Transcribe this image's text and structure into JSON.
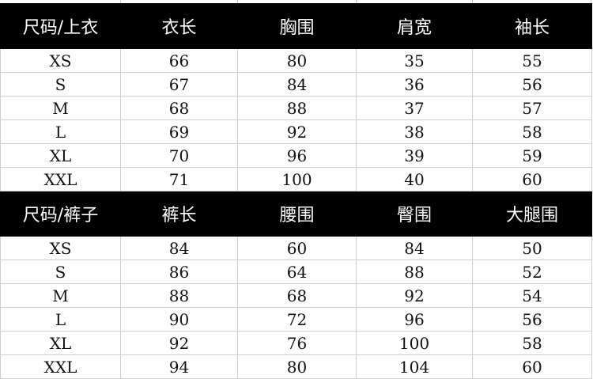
{
  "tops": {
    "headers": [
      "尺码/上衣",
      "衣长",
      "胸围",
      "肩宽",
      "袖长"
    ],
    "rows": [
      [
        "XS",
        "66",
        "80",
        "35",
        "55"
      ],
      [
        "S",
        "67",
        "84",
        "36",
        "56"
      ],
      [
        "M",
        "68",
        "88",
        "37",
        "57"
      ],
      [
        "L",
        "69",
        "92",
        "38",
        "58"
      ],
      [
        "XL",
        "70",
        "96",
        "39",
        "59"
      ],
      [
        "XXL",
        "71",
        "100",
        "40",
        "60"
      ]
    ]
  },
  "pants": {
    "headers": [
      "尺码/裤子",
      "裤长",
      "腰围",
      "臀围",
      "大腿围"
    ],
    "rows": [
      [
        "XS",
        "84",
        "60",
        "84",
        "50"
      ],
      [
        "S",
        "86",
        "64",
        "88",
        "52"
      ],
      [
        "M",
        "88",
        "68",
        "92",
        "54"
      ],
      [
        "L",
        "90",
        "72",
        "96",
        "56"
      ],
      [
        "XL",
        "92",
        "76",
        "100",
        "58"
      ],
      [
        "XXL",
        "94",
        "80",
        "104",
        "60"
      ]
    ]
  },
  "colors": {
    "header_bg": "#000000",
    "header_text": "#ffffff",
    "grid": "#cfcfcf"
  }
}
